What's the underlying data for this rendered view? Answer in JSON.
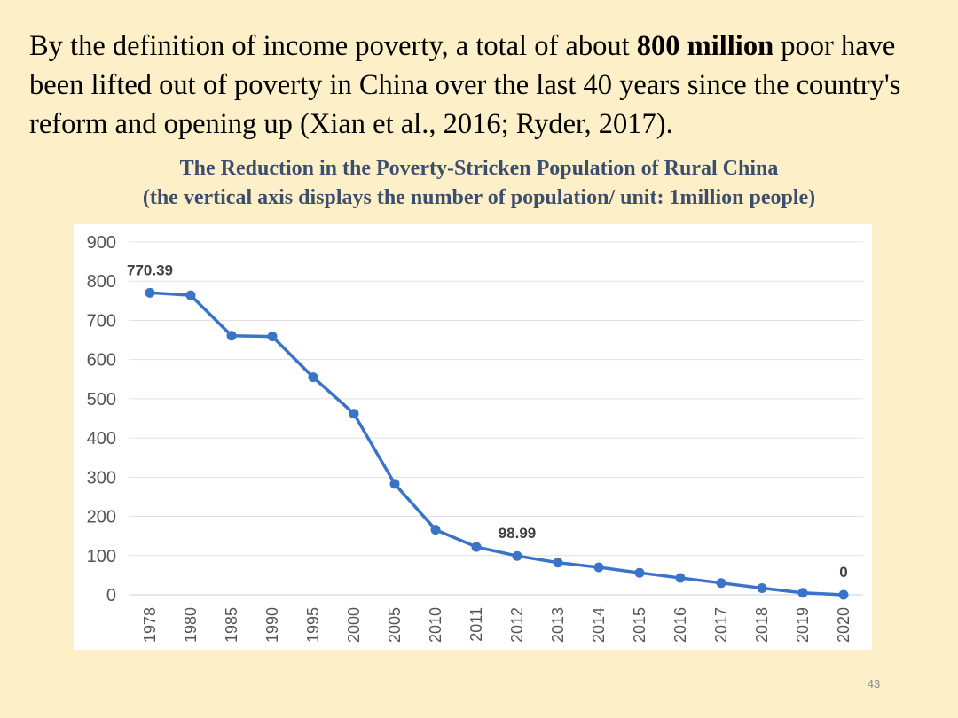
{
  "slide": {
    "intro": {
      "part1": "By the definition of income poverty, a total of about ",
      "bold": "800 million",
      "part2": " poor have been lifted out of poverty in China over the last 40 years since the country's reform and opening up (Xian et al., 2016; Ryder, 2017)."
    },
    "page_number": "43"
  },
  "chart_data": {
    "type": "line",
    "title": "The Reduction in the Poverty-Stricken Population of Rural China",
    "subtitle": "(the vertical axis displays the number of population/ unit: 1million people)",
    "xlabel": "",
    "ylabel": "",
    "ylim": [
      0,
      900
    ],
    "yticks": [
      0,
      100,
      200,
      300,
      400,
      500,
      600,
      700,
      800,
      900
    ],
    "grid": true,
    "categories": [
      "1978",
      "1980",
      "1985",
      "1990",
      "1995",
      "2000",
      "2005",
      "2010",
      "2011",
      "2012",
      "2013",
      "2014",
      "2015",
      "2016",
      "2017",
      "2018",
      "2019",
      "2020"
    ],
    "series": [
      {
        "name": "Poverty-stricken population",
        "color": "#3a74c9",
        "values": [
          770.39,
          764,
          661,
          659,
          555,
          462,
          283,
          166,
          122,
          98.99,
          82,
          70,
          56,
          43,
          30,
          17,
          5,
          0
        ]
      }
    ],
    "annotations": [
      {
        "index": 0,
        "text": "770.39"
      },
      {
        "index": 9,
        "text": "98.99"
      },
      {
        "index": 17,
        "text": "0"
      }
    ]
  }
}
